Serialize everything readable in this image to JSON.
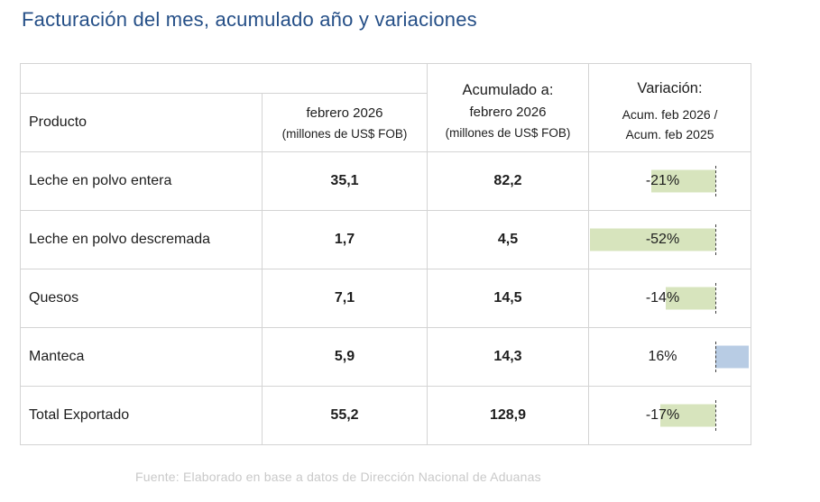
{
  "title": "Facturación del mes, acumulado año y variaciones",
  "footer": "Fuente: Elaborado en base a datos de Dirección Nacional de Aduanas",
  "colors": {
    "title_blue": "#254f87",
    "value_green": "#92d050",
    "value_blue": "#31659c",
    "bar_negative": "#d7e4bd",
    "bar_positive": "#b8cce4",
    "grid_border": "#d4d4d4",
    "axis_dash": "#3c3c3c",
    "footer_gray": "#c9c9c9"
  },
  "table": {
    "bar_axis_pct": 78,
    "header": {
      "producto": "Producto",
      "col_mes_line1": "febrero 2026",
      "col_mes_line2": "(millones de US$ FOB)",
      "col_acum_line1": "Acumulado a:",
      "col_acum_line2": "febrero 2026",
      "col_acum_line3": "(millones de US$ FOB)",
      "col_var_line1": "Variación:",
      "col_var_line2": "Acum. feb 2026 /",
      "col_var_line3": "Acum. feb 2025"
    },
    "rows": [
      {
        "producto": "Leche en polvo entera",
        "mes": "35,1",
        "acumulado": "82,2",
        "variacion": "-21%",
        "bar_side": "negative",
        "bar_pct": 39.5
      },
      {
        "producto": "Leche en polvo descremada",
        "mes": "1,7",
        "acumulado": "4,5",
        "variacion": "-52%",
        "bar_side": "negative",
        "bar_pct": 77.5
      },
      {
        "producto": "Quesos",
        "mes": "7,1",
        "acumulado": "14,5",
        "variacion": "-14%",
        "bar_side": "negative",
        "bar_pct": 30.5
      },
      {
        "producto": "Manteca",
        "mes": "5,9",
        "acumulado": "14,3",
        "variacion": "16%",
        "bar_side": "positive",
        "bar_pct": 21
      },
      {
        "producto": "Total Exportado",
        "mes": "55,2",
        "acumulado": "128,9",
        "variacion": "-17%",
        "bar_side": "negative",
        "bar_pct": 34
      }
    ]
  },
  "chart_data": {
    "type": "table",
    "title": "Facturación del mes, acumulado año y variaciones",
    "columns": [
      "Producto",
      "febrero 2026 (millones de US$ FOB)",
      "Acumulado a: febrero 2026 (millones de US$ FOB)",
      "Variación: Acum. feb 2026 / Acum. feb 2025"
    ],
    "rows": [
      [
        "Leche en polvo entera",
        35.1,
        82.2,
        -21
      ],
      [
        "Leche en polvo descremada",
        1.7,
        4.5,
        -52
      ],
      [
        "Quesos",
        7.1,
        14.5,
        -14
      ],
      [
        "Manteca",
        5.9,
        14.3,
        16
      ],
      [
        "Total Exportado",
        55.2,
        128.9,
        -17
      ]
    ],
    "notes": "Variación column rendered with Excel-style in-cell data bars: green bars extend left of dashed axis for negative values, blue bar extends right for positive value",
    "source": "Fuente: Elaborado en base a datos de Dirección Nacional de Aduanas"
  }
}
